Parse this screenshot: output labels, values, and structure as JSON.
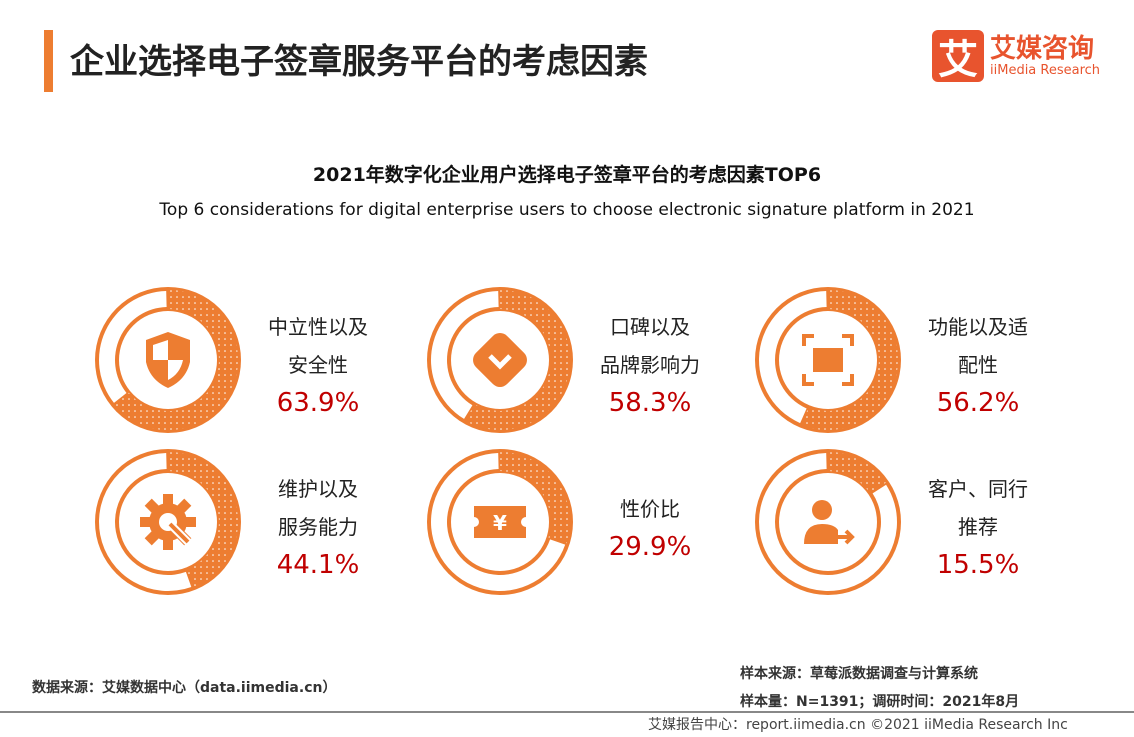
{
  "header": {
    "title": "企业选择电子签章服务平台的考虑因素",
    "logo_mark": "艾",
    "logo_cn": "艾媒咨询",
    "logo_en": "iiMedia Research"
  },
  "chart_data": {
    "type": "donut",
    "title": "2021年数字化企业用户选择电子签章平台的考虑因素TOP6",
    "subtitle": "Top 6 considerations for digital enterprise users to choose electronic signature platform in 2021",
    "unit": "%",
    "items": [
      {
        "label_lines": [
          "中立性以及",
          "安全性"
        ],
        "value": 63.9,
        "value_label": "63.9%",
        "icon": "shield-icon"
      },
      {
        "label_lines": [
          "口碑以及",
          "品牌影响力"
        ],
        "value": 58.3,
        "value_label": "58.3%",
        "icon": "heart-badge-icon"
      },
      {
        "label_lines": [
          "功能以及适",
          "配性"
        ],
        "value": 56.2,
        "value_label": "56.2%",
        "icon": "frame-icon"
      },
      {
        "label_lines": [
          "维护以及",
          "服务能力"
        ],
        "value": 44.1,
        "value_label": "44.1%",
        "icon": "gear-wrench-icon"
      },
      {
        "label_lines": [
          "性价比"
        ],
        "value": 29.9,
        "value_label": "29.9%",
        "icon": "yen-ticket-icon"
      },
      {
        "label_lines": [
          "客户、同行",
          "推荐"
        ],
        "value": 15.5,
        "value_label": "15.5%",
        "icon": "user-arrow-icon"
      }
    ],
    "colors": {
      "fill": "#ED7D31",
      "value_text": "#C00000"
    }
  },
  "footer": {
    "source_left": "数据来源：艾媒数据中心（data.iimedia.cn）",
    "sample_source": "样本来源：草莓派数据调查与计算系统",
    "sample_size": "样本量：N=1391；调研时间：2021年8月",
    "copyright": "艾媒报告中心：report.iimedia.cn  ©2021  iiMedia Research  Inc"
  }
}
